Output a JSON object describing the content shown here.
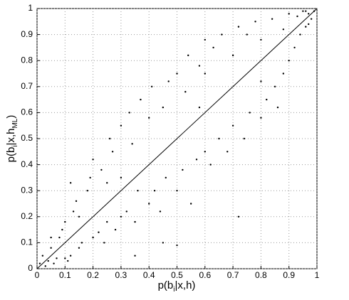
{
  "chart_data": {
    "type": "scatter",
    "xlabel": [
      "p(b",
      "i",
      "|x,h)"
    ],
    "ylabel": [
      "p(b",
      "i",
      "|x,h",
      "ML",
      ")"
    ],
    "xlim": [
      0,
      1
    ],
    "ylim": [
      0,
      1
    ],
    "xticks": [
      0,
      0.1,
      0.2,
      0.3,
      0.4,
      0.5,
      0.6,
      0.7,
      0.8,
      0.9,
      1
    ],
    "yticks": [
      0,
      0.1,
      0.2,
      0.3,
      0.4,
      0.5,
      0.6,
      0.7,
      0.8,
      0.9,
      1
    ],
    "grid": true,
    "series": [
      {
        "color": "#000000",
        "x": [
          0.01,
          0.02,
          0.03,
          0.05,
          0.04,
          0.06,
          0.08,
          0.07,
          0.1,
          0.12,
          0.09,
          0.11,
          0.13,
          0.15,
          0.14,
          0.16,
          0.18,
          0.2,
          0.19,
          0.22,
          0.2,
          0.24,
          0.23,
          0.25,
          0.26,
          0.28,
          0.27,
          0.3,
          0.3,
          0.32,
          0.33,
          0.35,
          0.34,
          0.36,
          0.37,
          0.4,
          0.4,
          0.42,
          0.41,
          0.44,
          0.45,
          0.46,
          0.47,
          0.5,
          0.5,
          0.52,
          0.53,
          0.55,
          0.54,
          0.57,
          0.58,
          0.6,
          0.6,
          0.62,
          0.63,
          0.65,
          0.66,
          0.68,
          0.7,
          0.7,
          0.72,
          0.74,
          0.75,
          0.76,
          0.78,
          0.8,
          0.8,
          0.82,
          0.84,
          0.85,
          0.86,
          0.88,
          0.88,
          0.9,
          0.9,
          0.92,
          0.93,
          0.94,
          0.95,
          0.96,
          0.97,
          0.98,
          0.99,
          0.97,
          0.96,
          0.1,
          0.05,
          0.15,
          0.5,
          0.45,
          0.72,
          0.58,
          0.3,
          0.35,
          0.6,
          0.12,
          0.25,
          0.8
        ],
        "y": [
          0.02,
          0.05,
          0.01,
          0.08,
          0.03,
          0.02,
          0.12,
          0.04,
          0.18,
          0.05,
          0.15,
          0.03,
          0.22,
          0.08,
          0.26,
          0.1,
          0.3,
          0.12,
          0.35,
          0.14,
          0.42,
          0.1,
          0.38,
          0.18,
          0.5,
          0.15,
          0.45,
          0.2,
          0.55,
          0.22,
          0.6,
          0.18,
          0.48,
          0.3,
          0.65,
          0.25,
          0.58,
          0.3,
          0.7,
          0.22,
          0.62,
          0.35,
          0.72,
          0.3,
          0.75,
          0.38,
          0.68,
          0.25,
          0.82,
          0.42,
          0.78,
          0.45,
          0.88,
          0.4,
          0.85,
          0.5,
          0.9,
          0.45,
          0.82,
          0.55,
          0.93,
          0.5,
          0.9,
          0.6,
          0.95,
          0.58,
          0.88,
          0.65,
          0.96,
          0.7,
          0.62,
          0.92,
          0.75,
          0.8,
          0.98,
          0.85,
          0.97,
          0.9,
          0.99,
          0.93,
          0.98,
          0.96,
          0.99,
          0.94,
          0.99,
          0.04,
          0.12,
          0.2,
          0.09,
          0.1,
          0.2,
          0.62,
          0.35,
          0.05,
          0.75,
          0.33,
          0.33,
          0.72
        ]
      },
      {
        "type": "line",
        "color": "#000000",
        "x": [
          0,
          1
        ],
        "y": [
          0,
          1
        ]
      }
    ]
  }
}
